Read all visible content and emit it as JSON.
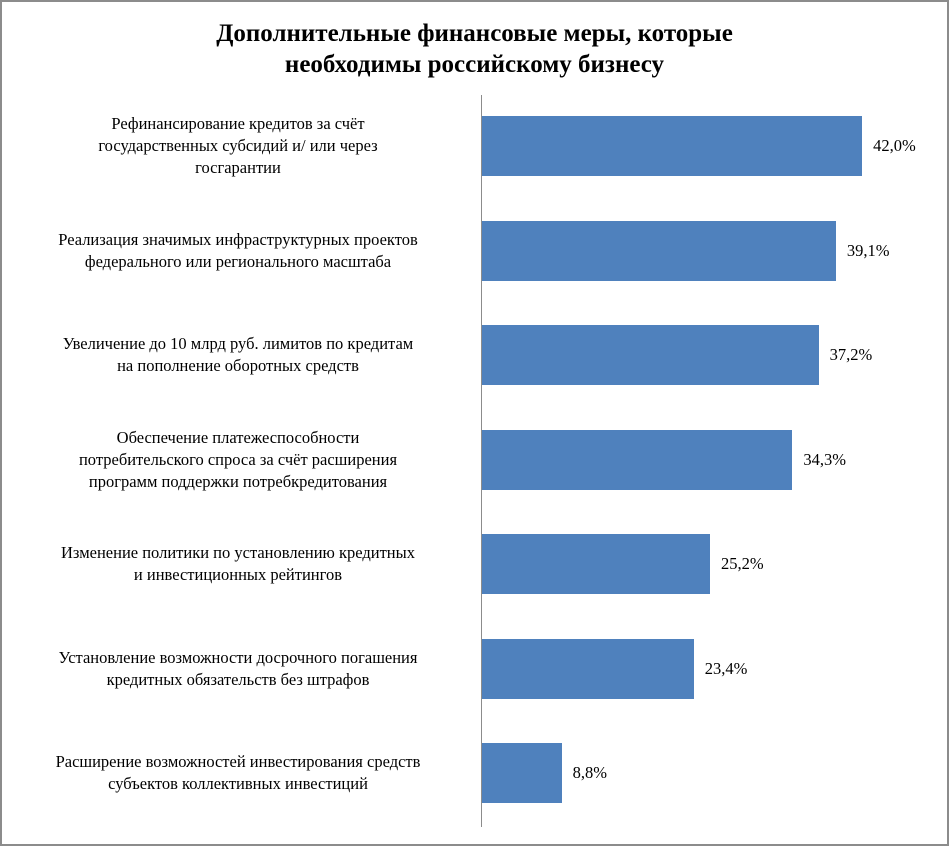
{
  "chart_data": {
    "type": "bar",
    "orientation": "horizontal",
    "title": "Дополнительные финансовые меры, которые необходимы российскому бизнесу",
    "title_lines": [
      "Дополнительные финансовые меры, которые",
      "необходимы российскому бизнесу"
    ],
    "xlabel": "",
    "ylabel": "",
    "grid": false,
    "legend": null,
    "bar_color": "#4f81bd",
    "categories": [
      "Рефинансирование кредитов за счёт государственных субсидий и/ или через госгарантии",
      "Реализация значимых инфраструктурных проектов федерального или регионального масштаба",
      "Увеличение до 10 млрд руб. лимитов по кредитам на пополнение оборотных средств",
      "Обеспечение платежеспособности потребительского спроса за счёт расширения программ поддержки потребкредитования",
      "Изменение политики по установлению кредитных и инвестиционных рейтингов",
      "Установление возможности досрочного погашения кредитных обязательств без штрафов",
      "Расширение возможностей инвестирования средств субъектов коллективных инвестиций"
    ],
    "values": [
      42.0,
      39.1,
      37.2,
      34.3,
      25.2,
      23.4,
      8.8
    ],
    "value_labels": [
      "42,0%",
      "39,1%",
      "37,2%",
      "34,3%",
      "25,2%",
      "23,4%",
      "8,8%"
    ],
    "unit": "%"
  },
  "labels": [
    {
      "lines": [
        "Рефинансирование кредитов за счёт",
        "государственных субсидий и/ или через",
        "госгарантии"
      ]
    },
    {
      "lines": [
        "Реализация значимых инфраструктурных проектов",
        "федерального или регионального масштаба"
      ]
    },
    {
      "lines": [
        "Увеличение до 10 млрд руб. лимитов по кредитам",
        "на пополнение оборотных средств"
      ]
    },
    {
      "lines": [
        "Обеспечение платежеспособности",
        "потребительского спроса за счёт расширения",
        "программ поддержки потребкредитования"
      ]
    },
    {
      "lines": [
        "Изменение политики по установлению кредитных",
        "и инвестиционных рейтингов"
      ]
    },
    {
      "lines": [
        "Установление возможности досрочного погашения",
        "кредитных обязательств без штрафов"
      ]
    },
    {
      "lines": [
        "Расширение возможностей инвестирования средств",
        "субъектов коллективных инвестиций"
      ]
    }
  ]
}
